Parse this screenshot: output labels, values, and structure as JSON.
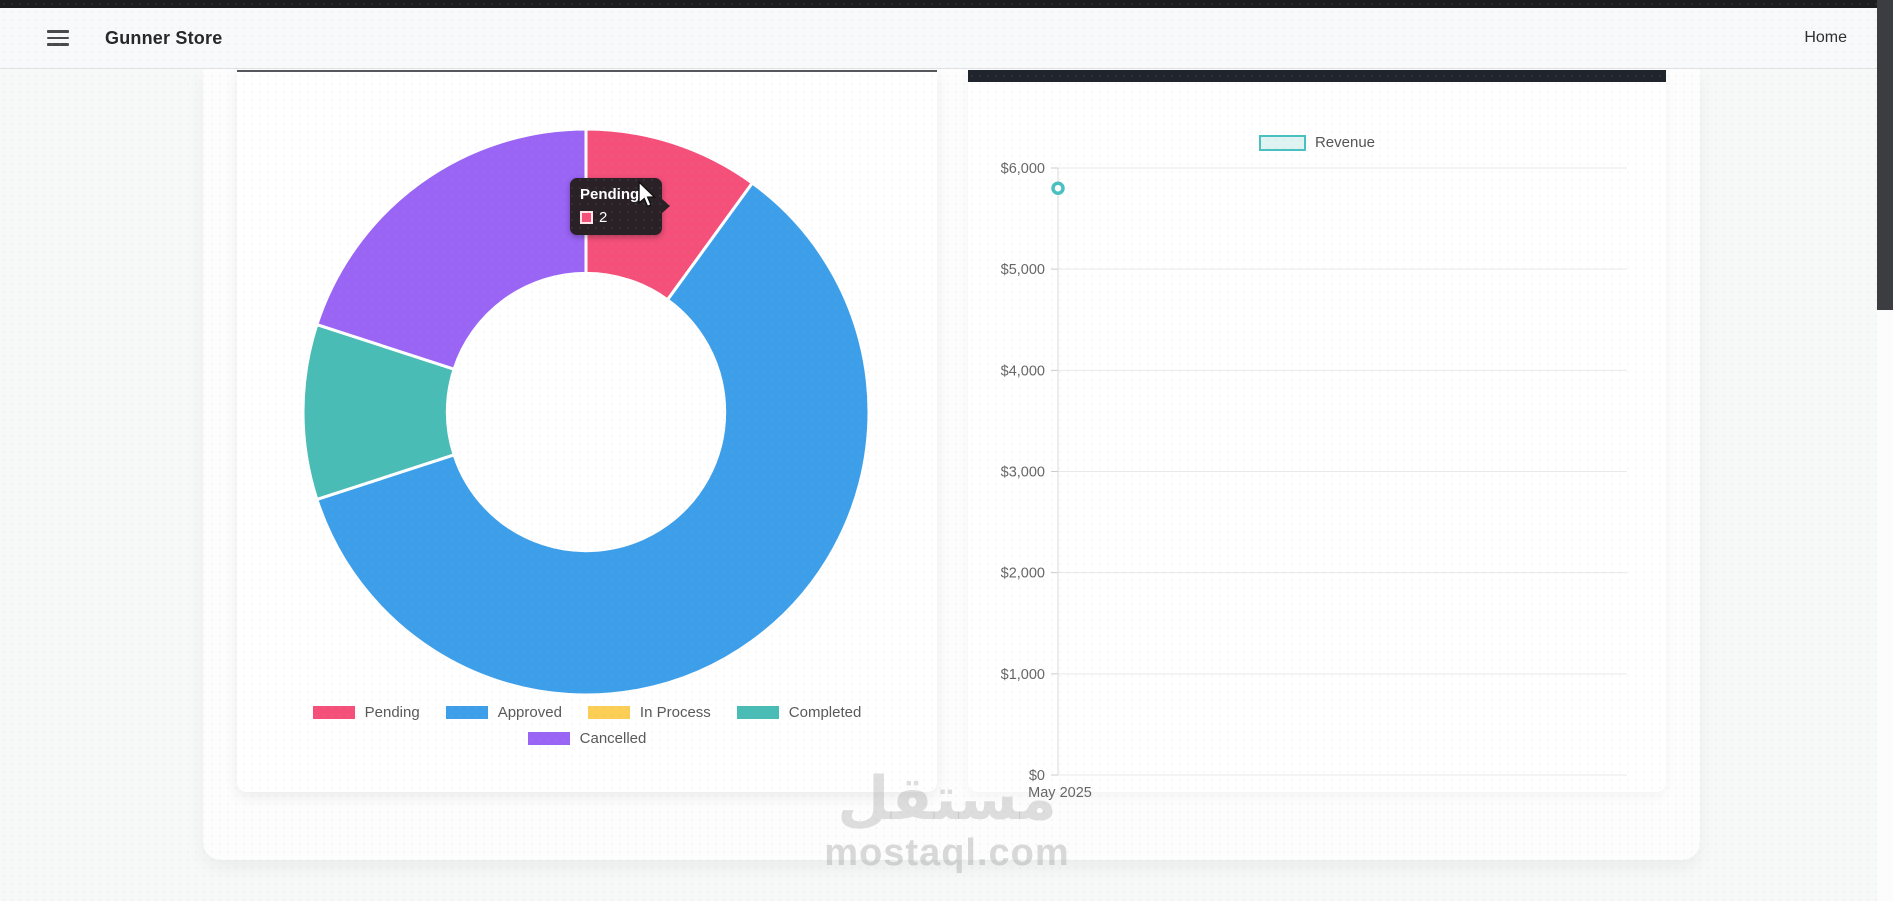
{
  "navbar": {
    "brand": "Gunner Store",
    "menu_icon": "hamburger-icon",
    "links": [
      {
        "label": "Home"
      }
    ]
  },
  "watermark": {
    "logo_text": "مستقل",
    "domain": "mostaql.com"
  },
  "chart_data": [
    {
      "type": "doughnut",
      "name": "orders-status",
      "labels": [
        "Pending",
        "Approved",
        "In Process",
        "Completed",
        "Cancelled"
      ],
      "values": [
        2,
        12,
        0,
        2,
        4
      ],
      "colors": [
        "#f4507a",
        "#3d9fe9",
        "#fbce56",
        "#49bcb6",
        "#9a64f5"
      ],
      "legend_position": "bottom",
      "legend_rows": [
        4,
        1
      ],
      "cutout_ratio": 0.49,
      "tooltip": {
        "label": "Pending",
        "value": "2",
        "color": "#f4507a"
      }
    },
    {
      "type": "line",
      "name": "revenue",
      "series": [
        {
          "name": "Revenue",
          "values": [
            5800
          ],
          "color": "#4bc0c0"
        }
      ],
      "x": [
        "May 2025"
      ],
      "ylim": [
        0,
        6000
      ],
      "yticks": [
        0,
        1000,
        2000,
        3000,
        4000,
        5000,
        6000
      ],
      "ytick_labels": [
        "$0",
        "$1,000",
        "$2,000",
        "$3,000",
        "$4,000",
        "$5,000",
        "$6,000"
      ],
      "grid": true,
      "legend_position": "top"
    }
  ],
  "ui_colors": {
    "accent_bar": "#20242c",
    "card_top_border": "#54575c",
    "tooltip_bg": "#2a2127",
    "gridline": "#e9e9ea",
    "axis_text": "#666666"
  }
}
